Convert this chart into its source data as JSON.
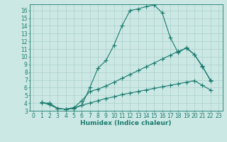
{
  "xlabel": "Humidex (Indice chaleur)",
  "background_color": "#cce8e4",
  "grid_color": "#aacfcc",
  "line_color": "#1a7a6e",
  "xlim": [
    -0.5,
    23.5
  ],
  "ylim": [
    3,
    16.8
  ],
  "x_ticks": [
    0,
    1,
    2,
    3,
    4,
    5,
    6,
    7,
    8,
    9,
    10,
    11,
    12,
    13,
    14,
    15,
    16,
    17,
    18,
    19,
    20,
    21,
    22,
    23
  ],
  "y_ticks": [
    3,
    4,
    5,
    6,
    7,
    8,
    9,
    10,
    11,
    12,
    13,
    14,
    15,
    16
  ],
  "curve1_x": [
    1,
    2,
    3,
    4,
    5,
    6,
    7,
    8,
    9,
    10,
    11,
    12,
    13,
    14,
    15,
    16,
    17,
    18,
    19,
    20,
    21,
    22
  ],
  "curve1_y": [
    4.0,
    4.0,
    3.3,
    3.2,
    3.3,
    3.7,
    6.0,
    8.5,
    9.5,
    11.5,
    14.0,
    16.0,
    16.2,
    16.5,
    16.7,
    15.7,
    12.5,
    10.5,
    11.2,
    10.3,
    8.7,
    7.0
  ],
  "curve2_x": [
    1,
    2,
    3,
    4,
    5,
    6,
    7,
    8,
    9,
    10,
    11,
    12,
    13,
    14,
    15,
    16,
    17,
    18,
    19,
    20,
    21,
    22
  ],
  "curve2_y": [
    4.1,
    3.8,
    3.3,
    3.2,
    3.4,
    4.3,
    5.5,
    5.8,
    6.2,
    6.7,
    7.2,
    7.7,
    8.2,
    8.7,
    9.2,
    9.7,
    10.2,
    10.7,
    11.1,
    10.3,
    8.8,
    6.9
  ],
  "curve3_x": [
    1,
    2,
    3,
    4,
    5,
    6,
    7,
    8,
    9,
    10,
    11,
    12,
    13,
    14,
    15,
    16,
    17,
    18,
    19,
    20,
    21,
    22
  ],
  "curve3_y": [
    4.1,
    3.8,
    3.3,
    3.2,
    3.4,
    3.7,
    4.0,
    4.3,
    4.6,
    4.8,
    5.1,
    5.3,
    5.5,
    5.7,
    5.9,
    6.1,
    6.3,
    6.5,
    6.7,
    6.9,
    6.3,
    5.7
  ],
  "marker_size": 2.5,
  "line_width": 0.8,
  "font_size": 6.5,
  "tick_font_size": 5.5
}
